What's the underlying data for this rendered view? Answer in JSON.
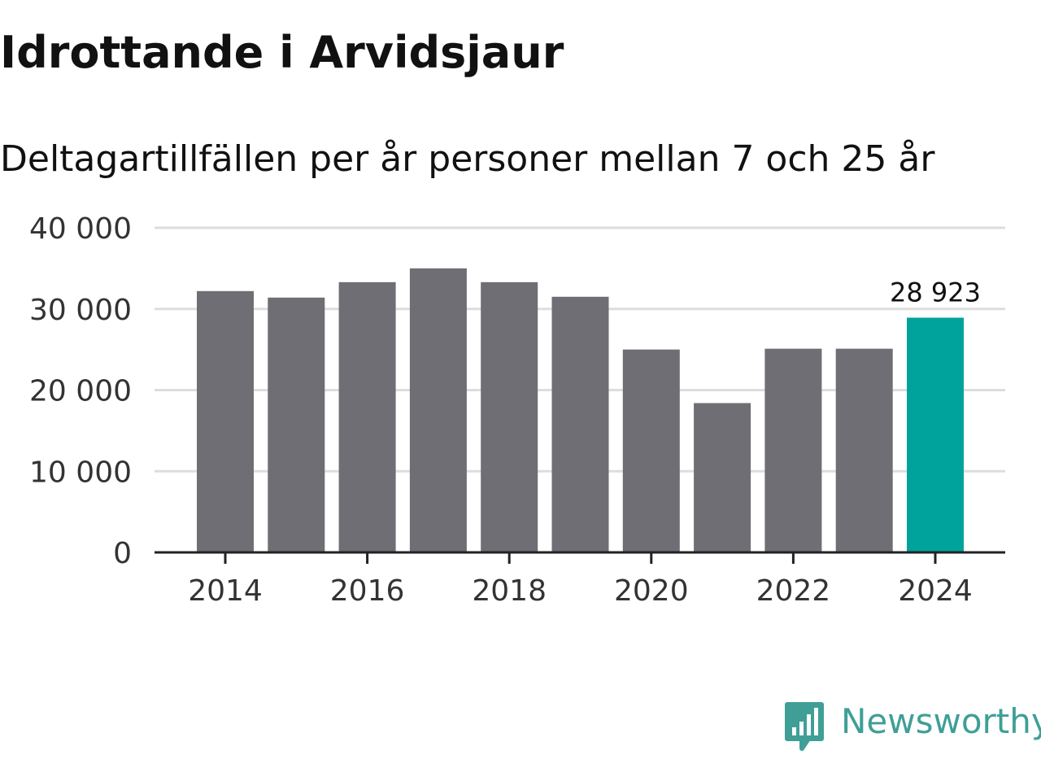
{
  "title": "Idrottande i Arvidsjaur",
  "subtitle": "Deltagartillfällen per år personer mellan 7 och 25 år",
  "brand": {
    "name": "Newsworthy",
    "icon": "newsworthy-logo-icon",
    "color": "#3f9f97"
  },
  "colors": {
    "bar": "#6f6e74",
    "highlight": "#00a39b",
    "grid": "#dddddd",
    "axis": "#222222",
    "tick_label": "#333333"
  },
  "chart_data": {
    "type": "bar",
    "title": "Idrottande i Arvidsjaur",
    "subtitle": "Deltagartillfällen per år personer mellan 7 och 25 år",
    "xlabel": "",
    "ylabel": "",
    "categories": [
      "2014",
      "2015",
      "2016",
      "2017",
      "2018",
      "2019",
      "2020",
      "2021",
      "2022",
      "2023",
      "2024"
    ],
    "values": [
      32200,
      31400,
      33300,
      35000,
      33300,
      31500,
      25000,
      18400,
      25100,
      25100,
      28923
    ],
    "ylim": [
      0,
      40000
    ],
    "yticks": [
      0,
      10000,
      20000,
      30000,
      40000
    ],
    "ytick_labels": [
      "0",
      "10 000",
      "20 000",
      "30 000",
      "40 000"
    ],
    "xtick_labels": [
      "2014",
      "2016",
      "2018",
      "2020",
      "2022",
      "2024"
    ],
    "highlight_index": 10,
    "annotation": {
      "index": 10,
      "label": "28 923"
    },
    "grid": true
  }
}
